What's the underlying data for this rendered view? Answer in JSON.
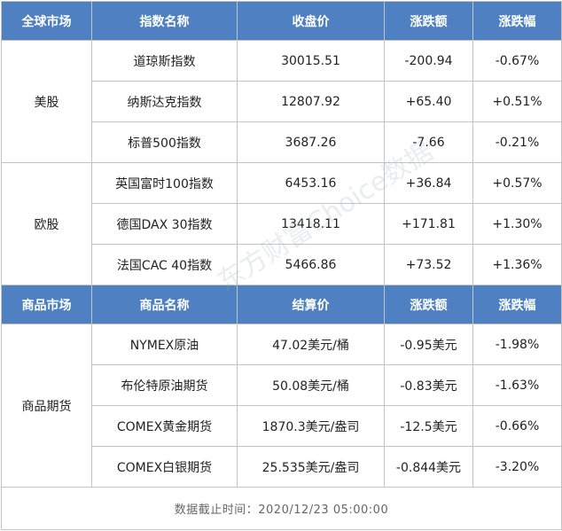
{
  "stocks": {
    "headers": [
      "全球市场",
      "指数名称",
      "收盘价",
      "涨跌额",
      "涨跌幅"
    ],
    "groups": [
      {
        "market": "美股",
        "rows": [
          {
            "name": "道琼斯指数",
            "price": "30015.51",
            "change": "-200.94",
            "pct": "-0.67%"
          },
          {
            "name": "纳斯达克指数",
            "price": "12807.92",
            "change": "+65.40",
            "pct": "+0.51%"
          },
          {
            "name": "标普500指数",
            "price": "3687.26",
            "change": "-7.66",
            "pct": "-0.21%"
          }
        ]
      },
      {
        "market": "欧股",
        "rows": [
          {
            "name": "英国富时100指数",
            "price": "6453.16",
            "change": "+36.84",
            "pct": "+0.57%"
          },
          {
            "name": "德国DAX 30指数",
            "price": "13418.11",
            "change": "+171.81",
            "pct": "+1.30%"
          },
          {
            "name": "法国CAC 40指数",
            "price": "5466.86",
            "change": "+73.52",
            "pct": "+1.36%"
          }
        ]
      }
    ]
  },
  "commodities": {
    "headers": [
      "商品市场",
      "商品名称",
      "结算价",
      "涨跌额",
      "涨跌幅"
    ],
    "market": "商品期货",
    "rows": [
      {
        "name": "NYMEX原油",
        "price": "47.02美元/桶",
        "change": "-0.95美元",
        "pct": "-1.98%"
      },
      {
        "name": "布伦特原油期货",
        "price": "50.08美元/桶",
        "change": "-0.83美元",
        "pct": "-1.63%"
      },
      {
        "name": "COMEX黄金期货",
        "price": "1870.3美元/盎司",
        "change": "-12.5美元",
        "pct": "-0.66%"
      },
      {
        "name": "COMEX白银期货",
        "price": "25.535美元/盎司",
        "change": "-0.844美元",
        "pct": "-3.20%"
      }
    ]
  },
  "footer": "数据截止时间：2020/12/23 05:00:00",
  "watermark": "东方财富Choice数据"
}
